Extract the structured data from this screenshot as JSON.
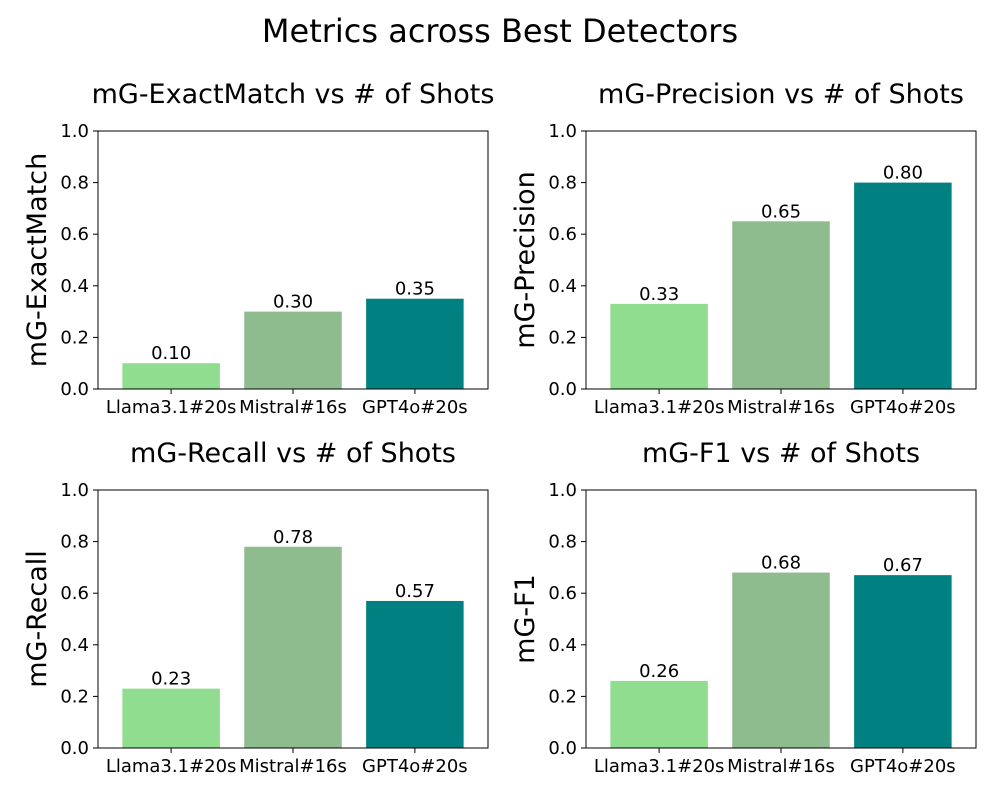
{
  "figure": {
    "suptitle": "Metrics across Best Detectors"
  },
  "chart_data": [
    {
      "type": "bar",
      "title": "mG-ExactMatch vs # of Shots",
      "xlabel": "",
      "ylabel": "mG-ExactMatch",
      "categories": [
        "Llama3.1#20s",
        "Mistral#16s",
        "GPT4o#20s"
      ],
      "values": [
        0.1,
        0.3,
        0.35
      ],
      "value_labels": [
        "0.10",
        "0.30",
        "0.35"
      ],
      "colors": [
        "#90dd8f",
        "#8fbc8f",
        "#008080"
      ],
      "ylim": [
        0,
        1.0
      ],
      "yticks": [
        "0.0",
        "0.2",
        "0.4",
        "0.6",
        "0.8",
        "1.0"
      ],
      "grid": false,
      "legend": "none"
    },
    {
      "type": "bar",
      "title": "mG-Precision vs # of Shots",
      "xlabel": "",
      "ylabel": "mG-Precision",
      "categories": [
        "Llama3.1#20s",
        "Mistral#16s",
        "GPT4o#20s"
      ],
      "values": [
        0.33,
        0.65,
        0.8
      ],
      "value_labels": [
        "0.33",
        "0.65",
        "0.80"
      ],
      "colors": [
        "#90dd8f",
        "#8fbc8f",
        "#008080"
      ],
      "ylim": [
        0,
        1.0
      ],
      "yticks": [
        "0.0",
        "0.2",
        "0.4",
        "0.6",
        "0.8",
        "1.0"
      ],
      "grid": false,
      "legend": "none"
    },
    {
      "type": "bar",
      "title": "mG-Recall vs # of Shots",
      "xlabel": "",
      "ylabel": "mG-Recall",
      "categories": [
        "Llama3.1#20s",
        "Mistral#16s",
        "GPT4o#20s"
      ],
      "values": [
        0.23,
        0.78,
        0.57
      ],
      "value_labels": [
        "0.23",
        "0.78",
        "0.57"
      ],
      "colors": [
        "#90dd8f",
        "#8fbc8f",
        "#008080"
      ],
      "ylim": [
        0,
        1.0
      ],
      "yticks": [
        "0.0",
        "0.2",
        "0.4",
        "0.6",
        "0.8",
        "1.0"
      ],
      "grid": false,
      "legend": "none"
    },
    {
      "type": "bar",
      "title": "mG-F1 vs # of Shots",
      "xlabel": "",
      "ylabel": "mG-F1",
      "categories": [
        "Llama3.1#20s",
        "Mistral#16s",
        "GPT4o#20s"
      ],
      "values": [
        0.26,
        0.68,
        0.67
      ],
      "value_labels": [
        "0.26",
        "0.68",
        "0.67"
      ],
      "colors": [
        "#90dd8f",
        "#8fbc8f",
        "#008080"
      ],
      "ylim": [
        0,
        1.0
      ],
      "yticks": [
        "0.0",
        "0.2",
        "0.4",
        "0.6",
        "0.8",
        "1.0"
      ],
      "grid": false,
      "legend": "none"
    }
  ]
}
